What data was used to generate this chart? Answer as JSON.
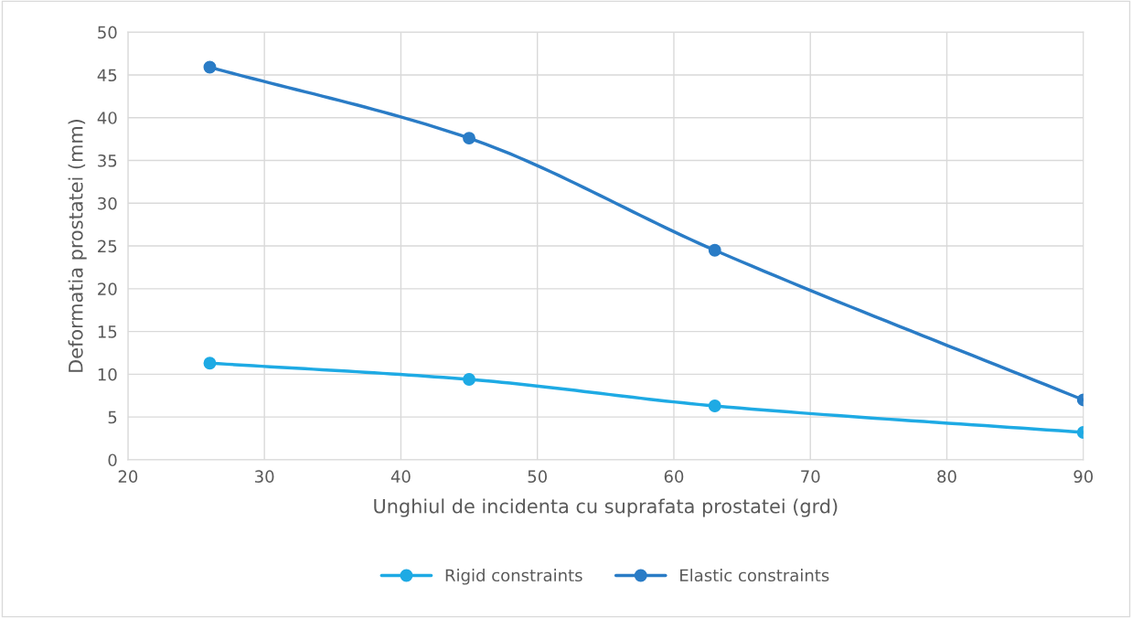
{
  "chart_data": {
    "type": "line",
    "xlabel": "Unghiul de incidenta cu suprafata prostatei (grd)",
    "ylabel": "Deformatia prostatei (mm)",
    "x": [
      26,
      45,
      63,
      90
    ],
    "series": [
      {
        "name": "Rigid constraints",
        "color": "#1eaae4",
        "values": [
          11.3,
          9.4,
          6.3,
          3.2
        ]
      },
      {
        "name": "Elastic constraints",
        "color": "#2a7cc6",
        "values": [
          45.9,
          37.6,
          24.5,
          7.0
        ]
      }
    ],
    "xlim": [
      20,
      90
    ],
    "xticks": [
      20,
      30,
      40,
      50,
      60,
      70,
      80,
      90
    ],
    "ylim": [
      0,
      50
    ],
    "yticks": [
      0,
      5,
      10,
      15,
      20,
      25,
      30,
      35,
      40,
      45,
      50
    ],
    "grid": true,
    "legend": "bottom",
    "marker": "circle",
    "line_style": "solid"
  }
}
